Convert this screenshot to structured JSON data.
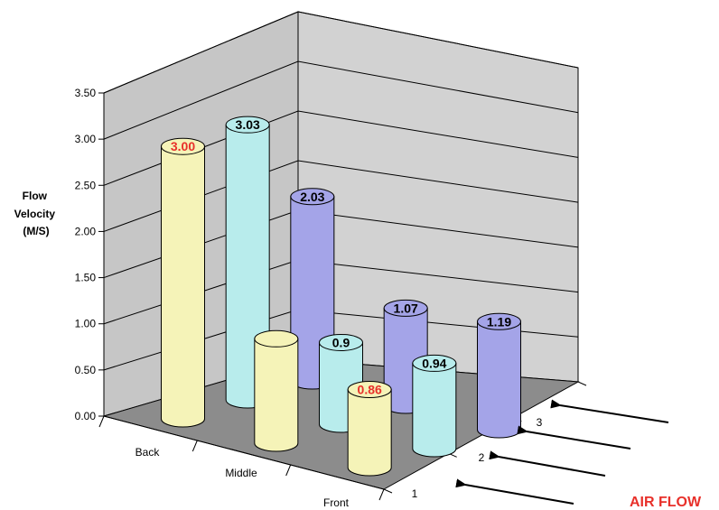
{
  "chart_data": {
    "type": "bar",
    "style": "3d-cylinder",
    "ylabel_lines": [
      "Flow",
      "Velocity",
      "(M/S)"
    ],
    "ylim": [
      0,
      3.5
    ],
    "y_ticks": [
      "0.00",
      "0.50",
      "1.00",
      "1.50",
      "2.00",
      "2.50",
      "3.00",
      "3.50"
    ],
    "categories": [
      "Back",
      "Middle",
      "Front"
    ],
    "depth_categories": [
      "1",
      "2",
      "3"
    ],
    "series": [
      {
        "color": "#F5F3B8",
        "values": [
          3.0,
          1.15,
          0.86
        ],
        "labels": [
          "3.00",
          "",
          "0.86"
        ],
        "label_colors": [
          "#E8302A",
          "",
          "#E8302A"
        ]
      },
      {
        "color": "#B8ECEC",
        "values": [
          3.03,
          0.9,
          0.94
        ],
        "labels": [
          "3.03",
          "0.9",
          "0.94"
        ],
        "label_colors": [
          "#000000",
          "#000000",
          "#000000"
        ]
      },
      {
        "color": "#A4A4E8",
        "values": [
          2.03,
          1.07,
          1.19
        ],
        "labels": [
          "2.03",
          "1.07",
          "1.19"
        ],
        "label_colors": [
          "#000000",
          "#000000",
          "#000000"
        ]
      }
    ],
    "annotation": {
      "text": "AIR FLOW",
      "color": "#E8302A"
    },
    "grid": true
  }
}
